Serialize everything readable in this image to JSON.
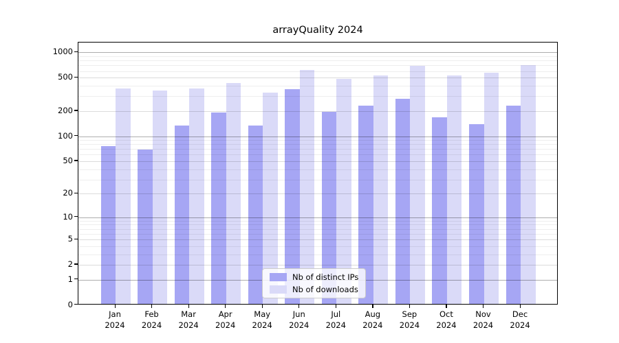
{
  "title": "arrayQuality 2024",
  "chart_data": {
    "type": "bar",
    "title": "arrayQuality 2024",
    "categories": [
      "Jan 2024",
      "Feb 2024",
      "Mar 2024",
      "Apr 2024",
      "May 2024",
      "Jun 2024",
      "Jul 2024",
      "Aug 2024",
      "Sep 2024",
      "Oct 2024",
      "Nov 2024",
      "Dec 2024"
    ],
    "series": [
      {
        "name": "Nb of distinct IPs",
        "color": "#a6a6f4",
        "values": [
          73,
          67,
          130,
          185,
          129,
          349,
          188,
          225,
          270,
          162,
          134,
          224
        ]
      },
      {
        "name": "Nb of downloads",
        "color": "#dadaf8",
        "values": [
          356,
          337,
          356,
          415,
          317,
          590,
          462,
          512,
          665,
          508,
          550,
          678
        ]
      }
    ],
    "xlabel": "",
    "ylabel": "",
    "yscale": "log1p",
    "ylim": [
      0,
      1300
    ],
    "yticks": [
      0,
      1,
      2,
      5,
      10,
      20,
      50,
      100,
      200,
      500,
      1000
    ],
    "grid": "horizontal major+minor",
    "legend_position": "inside lower-center"
  }
}
